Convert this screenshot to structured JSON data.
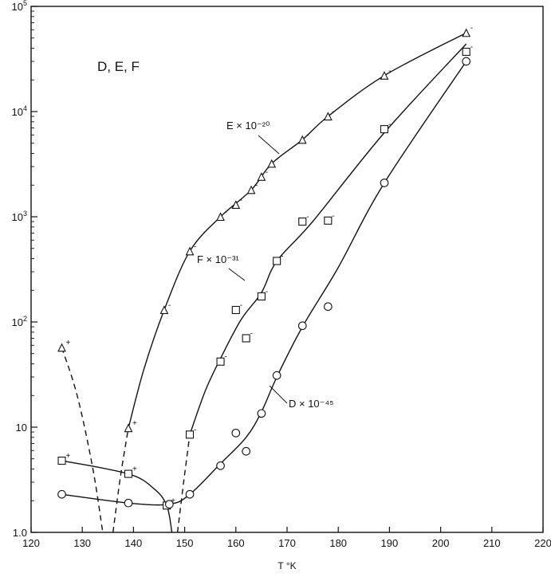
{
  "chart_data": {
    "type": "scatter",
    "title": "D, E, F",
    "xlabel": "T °K",
    "ylabel": "",
    "y_scale": "log",
    "xlim": [
      120,
      220
    ],
    "ylim": [
      1,
      100000
    ],
    "x_ticks": [
      120,
      130,
      140,
      150,
      160,
      170,
      180,
      190,
      200,
      210,
      220
    ],
    "x_tick_labels": [
      "120",
      "130",
      "140",
      "150",
      "160",
      "170",
      "180",
      "190",
      "200",
      "210",
      "220"
    ],
    "y_ticks": [
      1,
      10,
      100,
      1000,
      10000,
      100000
    ],
    "y_tick_labels": [
      {
        "base": "1.0",
        "exp": ""
      },
      {
        "base": "10",
        "exp": ""
      },
      {
        "base": "10",
        "exp": "2"
      },
      {
        "base": "10",
        "exp": "3"
      },
      {
        "base": "10",
        "exp": "4"
      },
      {
        "base": "10",
        "exp": "5"
      }
    ],
    "grid": false,
    "series": [
      {
        "name": "E × 10⁻²⁰",
        "marker": "triangle",
        "points": [
          {
            "x": 126,
            "y": 57,
            "sign": "+"
          },
          {
            "x": 139,
            "y": 9.8,
            "sign": "+"
          },
          {
            "x": 146,
            "y": 130,
            "sign": "-"
          },
          {
            "x": 151,
            "y": 470,
            "sign": "-"
          },
          {
            "x": 157,
            "y": 1000,
            "sign": "-"
          },
          {
            "x": 160,
            "y": 1300,
            "sign": "-"
          },
          {
            "x": 163,
            "y": 1800,
            "sign": "-"
          },
          {
            "x": 165,
            "y": 2400,
            "sign": "-"
          },
          {
            "x": 167,
            "y": 3200,
            "sign": "-"
          },
          {
            "x": 173,
            "y": 5400,
            "sign": "-"
          },
          {
            "x": 178,
            "y": 9000,
            "sign": "-"
          },
          {
            "x": 189,
            "y": 22000,
            "sign": "-"
          },
          {
            "x": 205,
            "y": 56000,
            "sign": "-"
          }
        ]
      },
      {
        "name": "F × 10⁻³¹",
        "marker": "square",
        "points": [
          {
            "x": 126,
            "y": 4.8,
            "sign": "+"
          },
          {
            "x": 139,
            "y": 3.6,
            "sign": "+"
          },
          {
            "x": 146.5,
            "y": 1.8,
            "sign": "+"
          },
          {
            "x": 151,
            "y": 8.5,
            "sign": "-"
          },
          {
            "x": 157,
            "y": 42,
            "sign": "-"
          },
          {
            "x": 160,
            "y": 130,
            "sign": "-"
          },
          {
            "x": 162,
            "y": 70,
            "sign": "-"
          },
          {
            "x": 165,
            "y": 175,
            "sign": "-"
          },
          {
            "x": 168,
            "y": 380,
            "sign": "-"
          },
          {
            "x": 173,
            "y": 900,
            "sign": "-"
          },
          {
            "x": 178,
            "y": 920,
            "sign": "-"
          },
          {
            "x": 189,
            "y": 6800,
            "sign": "-"
          },
          {
            "x": 205,
            "y": 37000,
            "sign": "-"
          }
        ]
      },
      {
        "name": "D × 10⁻⁴⁵",
        "marker": "circle",
        "points": [
          {
            "x": 126,
            "y": 2.3
          },
          {
            "x": 139,
            "y": 1.9
          },
          {
            "x": 147,
            "y": 1.85
          },
          {
            "x": 151,
            "y": 2.3
          },
          {
            "x": 157,
            "y": 4.3
          },
          {
            "x": 160,
            "y": 8.8
          },
          {
            "x": 162,
            "y": 5.9
          },
          {
            "x": 165,
            "y": 13.5
          },
          {
            "x": 168,
            "y": 31
          },
          {
            "x": 173,
            "y": 92
          },
          {
            "x": 178,
            "y": 140
          },
          {
            "x": 189,
            "y": 2100
          },
          {
            "x": 205,
            "y": 30000
          }
        ]
      }
    ]
  }
}
